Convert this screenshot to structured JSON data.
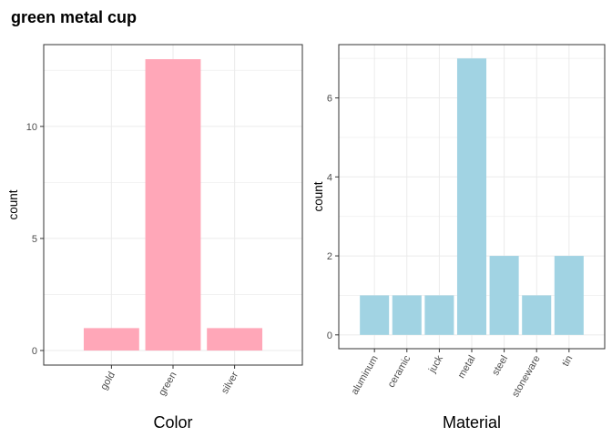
{
  "title": "green metal cup",
  "chart_data": [
    {
      "type": "bar",
      "xlabel": "Color",
      "ylabel": "count",
      "categories": [
        "gold",
        "green",
        "silver"
      ],
      "values": [
        1,
        13,
        1
      ],
      "yticks": [
        0,
        5,
        10
      ],
      "ylim": [
        -0.65,
        13.65
      ],
      "bar_color": "#ffa7b8",
      "grid": true
    },
    {
      "type": "bar",
      "xlabel": "Material",
      "ylabel": "count",
      "categories": [
        "aluminum",
        "ceramic",
        "juck",
        "metal",
        "steel",
        "stoneware",
        "tin"
      ],
      "values": [
        1,
        1,
        1,
        7,
        2,
        1,
        2
      ],
      "yticks": [
        0,
        2,
        4,
        6
      ],
      "ylim": [
        -0.35,
        7.35
      ],
      "bar_color": "#a1d3e3",
      "grid": true
    }
  ]
}
